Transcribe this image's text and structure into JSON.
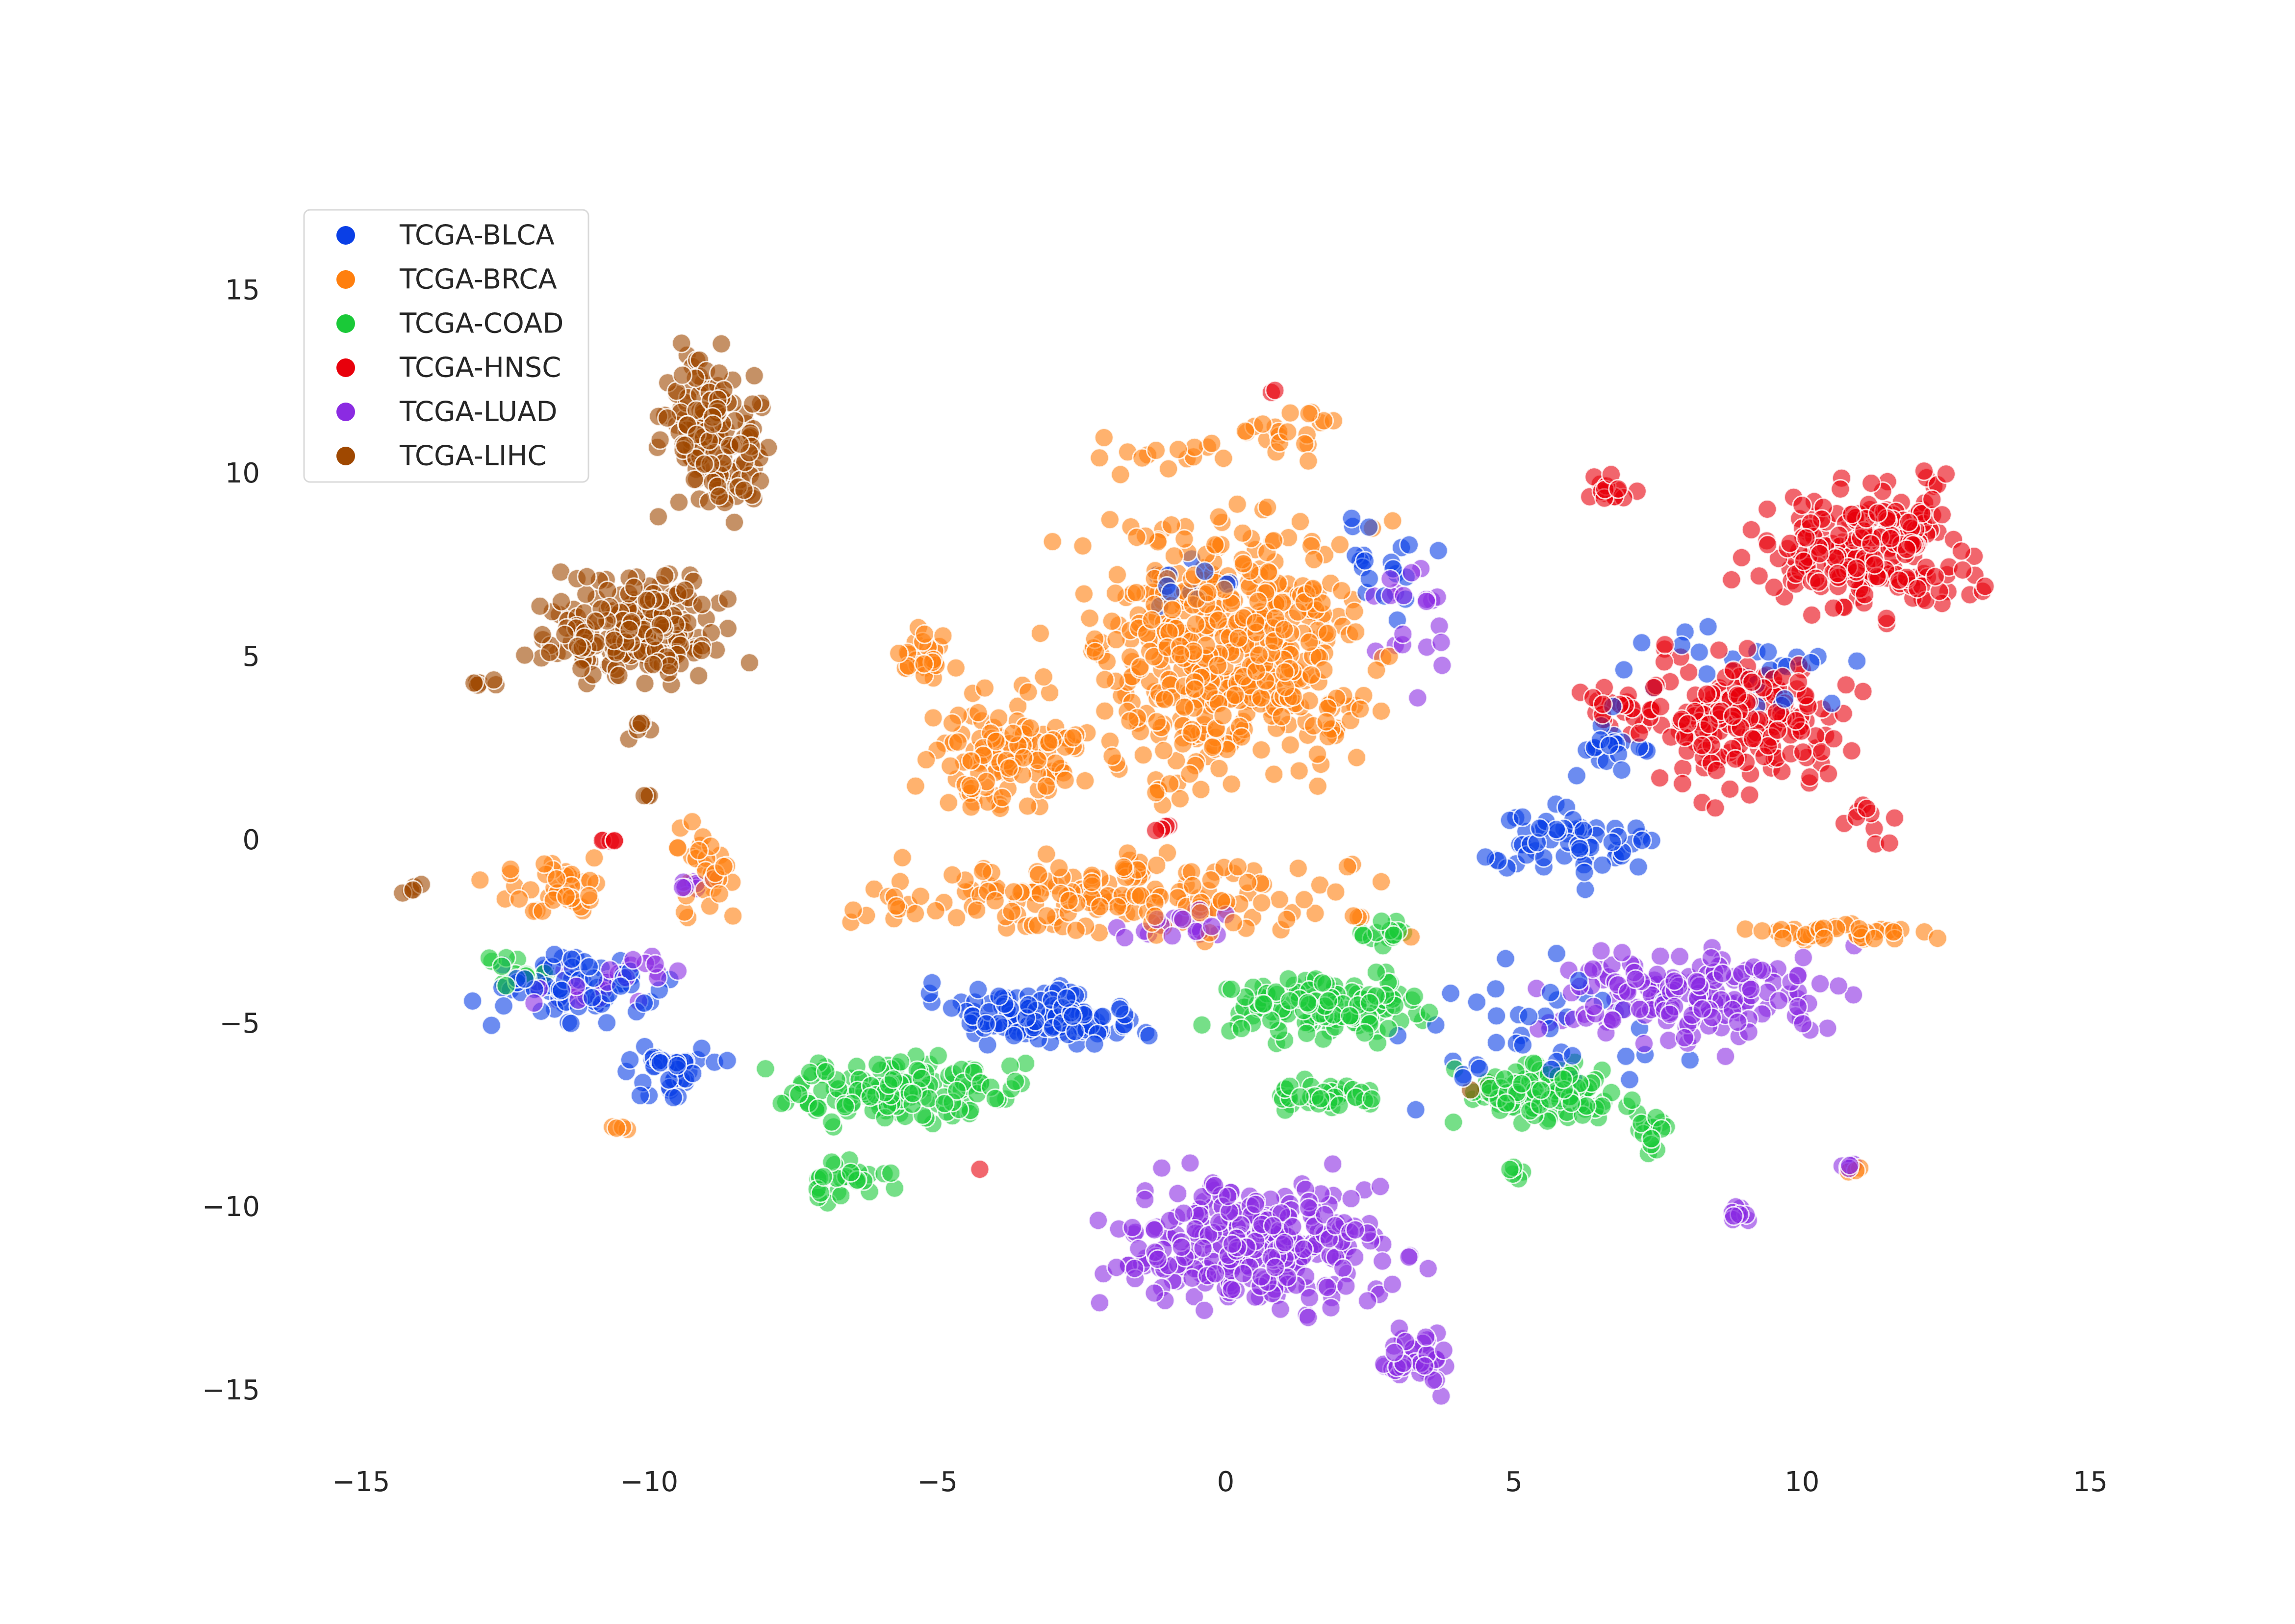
{
  "chart_data": {
    "type": "scatter",
    "title": "",
    "xlabel": "",
    "ylabel": "",
    "xlim": [
      -16.5,
      16
    ],
    "ylim": [
      -17.2,
      18.5
    ],
    "xticks": [
      -15,
      -10,
      -5,
      0,
      5,
      10,
      15
    ],
    "yticks": [
      -15,
      -10,
      -5,
      0,
      5,
      10,
      15
    ],
    "xtick_labels": [
      "−15",
      "−10",
      "−5",
      "0",
      "5",
      "10",
      "15"
    ],
    "ytick_labels": [
      "−15",
      "−10",
      "−5",
      "0",
      "5",
      "10",
      "15"
    ],
    "grid": false,
    "legend_position": "top-left",
    "marker_alpha": 0.6,
    "series": [
      {
        "name": "TCGA-BLCA",
        "color": "#0a3fe6",
        "clusters": [
          {
            "x": [
              -13.5,
              -9.0
            ],
            "y": [
              -5.3,
              -2.7
            ],
            "n": 70
          },
          {
            "x": [
              -11.0,
              -8.5
            ],
            "y": [
              -7.8,
              -5.0
            ],
            "n": 40
          },
          {
            "x": [
              -5.5,
              -1.0
            ],
            "y": [
              -5.8,
              -3.8
            ],
            "n": 140
          },
          {
            "x": [
              4.0,
              8.0
            ],
            "y": [
              -1.5,
              1.5
            ],
            "n": 60
          },
          {
            "x": [
              5.5,
              7.5
            ],
            "y": [
              1.5,
              3.5
            ],
            "n": 20
          },
          {
            "x": [
              6.0,
              11.5
            ],
            "y": [
              3.0,
              6.5
            ],
            "n": 25
          },
          {
            "x": [
              1.5,
              4.0
            ],
            "y": [
              5.0,
              10.0
            ],
            "n": 20
          },
          {
            "x": [
              -2.5,
              0.5
            ],
            "y": [
              6.0,
              8.0
            ],
            "n": 12
          },
          {
            "x": [
              2.0,
              9.0
            ],
            "y": [
              -8.0,
              -2.5
            ],
            "n": 40
          }
        ]
      },
      {
        "name": "TCGA-BRCA",
        "color": "#ff7f0e",
        "clusters": [
          {
            "x": [
              -3.5,
              3.5
            ],
            "y": [
              0.0,
              10.5
            ],
            "n": 520
          },
          {
            "x": [
              -5.5,
              -2.0
            ],
            "y": [
              0.0,
              4.5
            ],
            "n": 120
          },
          {
            "x": [
              -6.0,
              -4.5
            ],
            "y": [
              4.0,
              6.2
            ],
            "n": 30
          },
          {
            "x": [
              -8.0,
              4.0
            ],
            "y": [
              -3.0,
              0.0
            ],
            "n": 180
          },
          {
            "x": [
              -13.5,
              -10.0
            ],
            "y": [
              -2.5,
              0.0
            ],
            "n": 40
          },
          {
            "x": [
              -10.0,
              -8.0
            ],
            "y": [
              -3.0,
              1.2
            ],
            "n": 30
          },
          {
            "x": [
              0.3,
              2.0
            ],
            "y": [
              10.0,
              12.3
            ],
            "n": 20
          },
          {
            "x": [
              8.5,
              12.6
            ],
            "y": [
              -2.8,
              -2.2
            ],
            "n": 40
          },
          {
            "x": [
              -10.8,
              -10.3
            ],
            "y": [
              -8.0,
              -7.7
            ],
            "n": 4
          },
          {
            "x": [
              10.7,
              11.2
            ],
            "y": [
              -9.1,
              -8.9
            ],
            "n": 3
          },
          {
            "x": [
              -4.0,
              2.0
            ],
            "y": [
              10.0,
              11.2
            ],
            "n": 15
          }
        ]
      },
      {
        "name": "TCGA-COAD",
        "color": "#1ac938",
        "clusters": [
          {
            "x": [
              -8.5,
              -3.0
            ],
            "y": [
              -8.0,
              -5.5
            ],
            "n": 140
          },
          {
            "x": [
              -1.0,
              4.5
            ],
            "y": [
              -6.0,
              -3.0
            ],
            "n": 130
          },
          {
            "x": [
              0.5,
              3.0
            ],
            "y": [
              -7.5,
              -6.5
            ],
            "n": 40
          },
          {
            "x": [
              3.5,
              7.5
            ],
            "y": [
              -8.0,
              -5.8
            ],
            "n": 150
          },
          {
            "x": [
              7.0,
              7.8
            ],
            "y": [
              -8.8,
              -7.0
            ],
            "n": 15
          },
          {
            "x": [
              -7.5,
              -5.5
            ],
            "y": [
              -10.0,
              -8.5
            ],
            "n": 30
          },
          {
            "x": [
              -13.0,
              -11.5
            ],
            "y": [
              -4.3,
              -2.8
            ],
            "n": 15
          },
          {
            "x": [
              4.5,
              5.5
            ],
            "y": [
              -9.3,
              -8.8
            ],
            "n": 5
          },
          {
            "x": [
              2.0,
              3.5
            ],
            "y": [
              -3.0,
              -1.8
            ],
            "n": 15
          }
        ]
      },
      {
        "name": "TCGA-HNSC",
        "color": "#e8000b",
        "clusters": [
          {
            "x": [
              8.5,
              13.8
            ],
            "y": [
              5.5,
              10.2
            ],
            "n": 230
          },
          {
            "x": [
              6.5,
              11.5
            ],
            "y": [
              0.5,
              6.0
            ],
            "n": 180
          },
          {
            "x": [
              5.5,
              8.0
            ],
            "y": [
              2.5,
              4.5
            ],
            "n": 25
          },
          {
            "x": [
              6.0,
              7.5
            ],
            "y": [
              9.0,
              10.2
            ],
            "n": 15
          },
          {
            "x": [
              10.5,
              12.3
            ],
            "y": [
              -0.5,
              1.5
            ],
            "n": 10
          },
          {
            "x": [
              -11.0,
              -10.3
            ],
            "y": [
              -0.2,
              0.2
            ],
            "n": 5
          },
          {
            "x": [
              -1.5,
              -0.5
            ],
            "y": [
              0.0,
              0.8
            ],
            "n": 4
          },
          {
            "x": [
              -4.5,
              -4.0
            ],
            "y": [
              -9.1,
              -8.9
            ],
            "n": 1
          },
          {
            "x": [
              0.6,
              0.9
            ],
            "y": [
              12.0,
              12.4
            ],
            "n": 2
          }
        ]
      },
      {
        "name": "TCGA-LUAD",
        "color": "#8b2be2",
        "clusters": [
          {
            "x": [
              -3.0,
              4.0
            ],
            "y": [
              -13.5,
              -8.5
            ],
            "n": 300
          },
          {
            "x": [
              2.5,
              4.0
            ],
            "y": [
              -15.3,
              -13.0
            ],
            "n": 40
          },
          {
            "x": [
              4.5,
              11.5
            ],
            "y": [
              -6.0,
              -2.5
            ],
            "n": 170
          },
          {
            "x": [
              8.5,
              9.3
            ],
            "y": [
              -10.5,
              -9.8
            ],
            "n": 10
          },
          {
            "x": [
              -12.5,
              -9.0
            ],
            "y": [
              -5.0,
              -2.8
            ],
            "n": 25
          },
          {
            "x": [
              -9.8,
              -8.8
            ],
            "y": [
              -1.6,
              -0.8
            ],
            "n": 8
          },
          {
            "x": [
              2.0,
              4.5
            ],
            "y": [
              3.5,
              8.5
            ],
            "n": 20
          },
          {
            "x": [
              -2.5,
              1.0
            ],
            "y": [
              -3.0,
              -1.5
            ],
            "n": 20
          },
          {
            "x": [
              10.5,
              11.3
            ],
            "y": [
              -9.0,
              -8.7
            ],
            "n": 6
          }
        ]
      },
      {
        "name": "TCGA-LIHC",
        "color": "#9f4800",
        "clusters": [
          {
            "x": [
              -12.5,
              -8.0
            ],
            "y": [
              3.5,
              8.0
            ],
            "n": 210
          },
          {
            "x": [
              -10.2,
              -7.5
            ],
            "y": [
              8.0,
              14.2
            ],
            "n": 150
          },
          {
            "x": [
              -13.3,
              -12.5
            ],
            "y": [
              4.0,
              4.5
            ],
            "n": 6
          },
          {
            "x": [
              -10.5,
              -9.8
            ],
            "y": [
              2.5,
              3.5
            ],
            "n": 6
          },
          {
            "x": [
              -10.3,
              -9.8
            ],
            "y": [
              1.1,
              1.3
            ],
            "n": 3
          },
          {
            "x": [
              -14.5,
              -13.6
            ],
            "y": [
              -1.5,
              -1.1
            ],
            "n": 5
          },
          {
            "x": [
              4.0,
              5.0
            ],
            "y": [
              -7.0,
              -6.5
            ],
            "n": 3
          }
        ]
      }
    ]
  }
}
